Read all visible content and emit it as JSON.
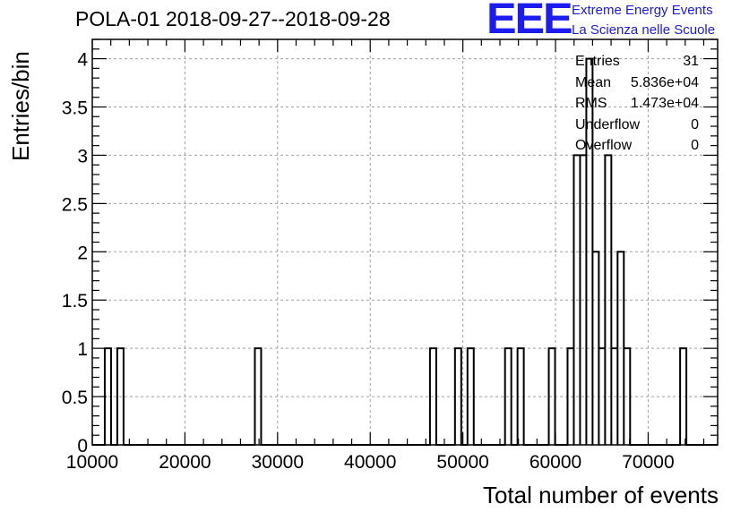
{
  "title": "POLA-01 2018-09-27--2018-09-28",
  "logo": {
    "mark": "EEE",
    "line1": "Extreme Energy Events",
    "line2": "La Scienza nelle Scuole",
    "color": "#1c1cf0"
  },
  "stats": [
    {
      "label": "Entries",
      "value": "31"
    },
    {
      "label": "Mean",
      "value": "5.836e+04"
    },
    {
      "label": "RMS",
      "value": "1.473e+04"
    },
    {
      "label": "Underflow",
      "value": "0"
    },
    {
      "label": "Overflow",
      "value": "0"
    }
  ],
  "chart_data": {
    "type": "histogram",
    "xlabel": "Total number of events",
    "ylabel": "Entries/bin",
    "xlim": [
      10000,
      77500
    ],
    "ylim": [
      0,
      4.2
    ],
    "grid": true,
    "x_ticks": [
      10000,
      20000,
      30000,
      40000,
      50000,
      60000,
      70000
    ],
    "x_tick_labels": [
      "10000",
      "20000",
      "30000",
      "40000",
      "50000",
      "60000",
      "70000"
    ],
    "y_ticks": [
      0,
      0.5,
      1,
      1.5,
      2,
      2.5,
      3,
      3.5,
      4
    ],
    "y_tick_labels": [
      "0",
      "0.5",
      "1",
      "1.5",
      "2",
      "2.5",
      "3",
      "3.5",
      "4"
    ],
    "bin_width": 675,
    "bins": [
      {
        "x0": 11350,
        "count": 1
      },
      {
        "x0": 12700,
        "count": 1
      },
      {
        "x0": 27550,
        "count": 1
      },
      {
        "x0": 46450,
        "count": 1
      },
      {
        "x0": 49150,
        "count": 1
      },
      {
        "x0": 50500,
        "count": 1
      },
      {
        "x0": 54550,
        "count": 1
      },
      {
        "x0": 55900,
        "count": 1
      },
      {
        "x0": 59275,
        "count": 1
      },
      {
        "x0": 61300,
        "count": 1
      },
      {
        "x0": 61975,
        "count": 3
      },
      {
        "x0": 62650,
        "count": 3
      },
      {
        "x0": 63325,
        "count": 4
      },
      {
        "x0": 64000,
        "count": 2
      },
      {
        "x0": 64675,
        "count": 1
      },
      {
        "x0": 65350,
        "count": 3
      },
      {
        "x0": 66025,
        "count": 1
      },
      {
        "x0": 66700,
        "count": 2
      },
      {
        "x0": 67375,
        "count": 1
      },
      {
        "x0": 73450,
        "count": 1
      }
    ],
    "line_color": "#000000"
  }
}
